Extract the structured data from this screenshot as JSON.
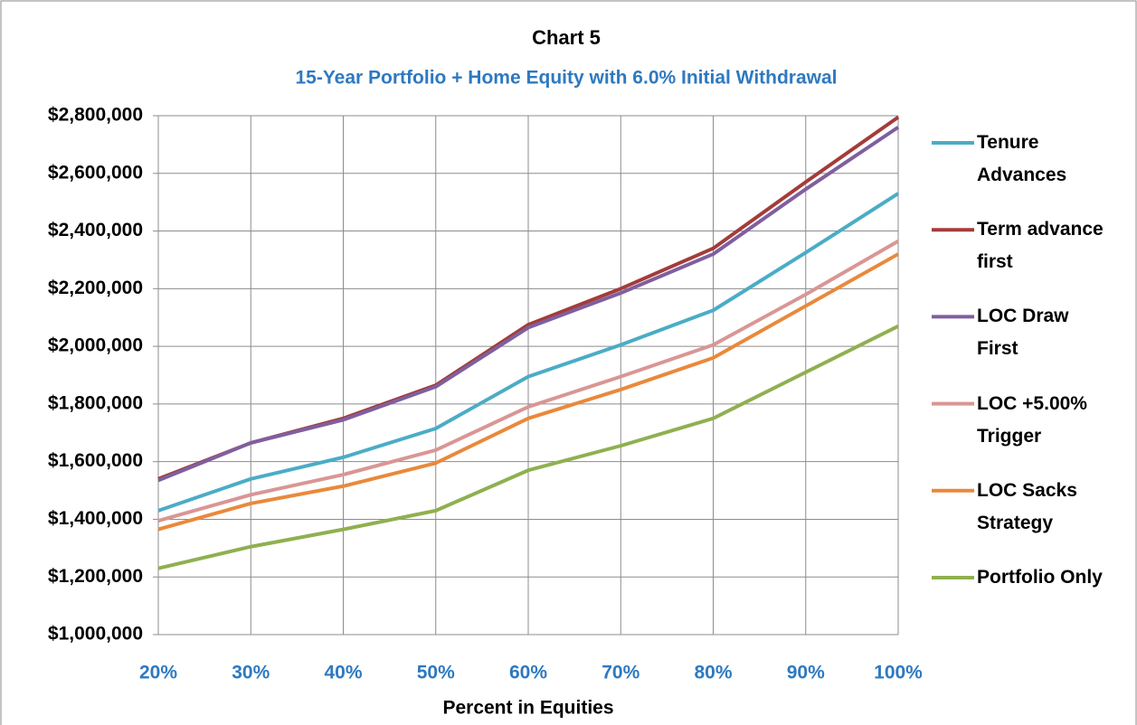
{
  "chart_data": {
    "type": "line",
    "title": "Chart 5",
    "subtitle": "15-Year Portfolio + Home Equity with 6.0% Initial Withdrawal",
    "x_label": "Percent in Equities",
    "categories": [
      "20%",
      "30%",
      "40%",
      "50%",
      "60%",
      "70%",
      "80%",
      "90%",
      "100%"
    ],
    "series": [
      {
        "name": "Tenure Advances",
        "color": "#4bacc6",
        "values": [
          1430000,
          1540000,
          1615000,
          1715000,
          1895000,
          2005000,
          2125000,
          2325000,
          2530000
        ]
      },
      {
        "name": "Term advance first",
        "color": "#a33c3a",
        "values": [
          1540000,
          1665000,
          1750000,
          1865000,
          2075000,
          2200000,
          2340000,
          2570000,
          2795000
        ]
      },
      {
        "name": "LOC Draw First",
        "color": "#7f5f9f",
        "values": [
          1535000,
          1665000,
          1745000,
          1860000,
          2065000,
          2185000,
          2320000,
          2545000,
          2760000
        ]
      },
      {
        "name": "LOC +5.00% Trigger",
        "color": "#d99694",
        "values": [
          1395000,
          1485000,
          1555000,
          1640000,
          1790000,
          1895000,
          2005000,
          2180000,
          2365000
        ]
      },
      {
        "name": "LOC Sacks Strategy",
        "color": "#e9893b",
        "values": [
          1365000,
          1455000,
          1515000,
          1595000,
          1750000,
          1850000,
          1960000,
          2140000,
          2320000
        ]
      },
      {
        "name": "Portfolio Only",
        "color": "#8fb050",
        "values": [
          1230000,
          1305000,
          1365000,
          1430000,
          1570000,
          1655000,
          1750000,
          1910000,
          2070000
        ]
      }
    ],
    "ylim": [
      1000000,
      2800000
    ],
    "yticks": [
      {
        "value": 1000000,
        "label": "$1,000,000"
      },
      {
        "value": 1200000,
        "label": "$1,200,000"
      },
      {
        "value": 1400000,
        "label": "$1,400,000"
      },
      {
        "value": 1600000,
        "label": "$1,600,000"
      },
      {
        "value": 1800000,
        "label": "$1,800,000"
      },
      {
        "value": 2000000,
        "label": "$2,000,000"
      },
      {
        "value": 2200000,
        "label": "$2,200,000"
      },
      {
        "value": 2400000,
        "label": "$2,400,000"
      },
      {
        "value": 2600000,
        "label": "$2,600,000"
      },
      {
        "value": 2800000,
        "label": "$2,800,000"
      }
    ],
    "grid": true,
    "legend": "right"
  }
}
